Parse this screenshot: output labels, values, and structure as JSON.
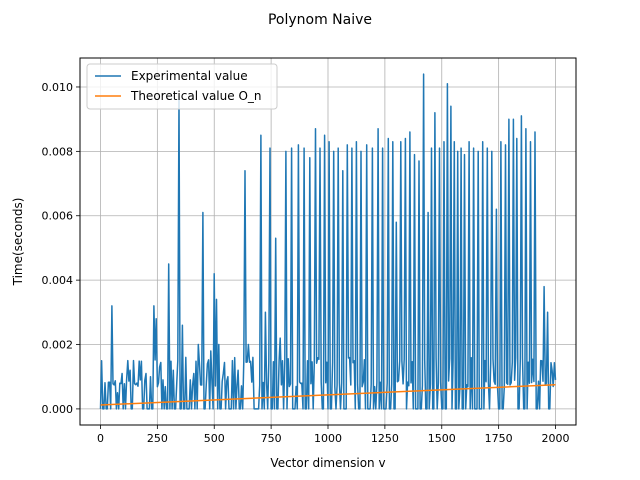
{
  "chart_data": {
    "type": "line",
    "title": "Polynom Naive",
    "xlabel": "Vector dimension v",
    "ylabel": "Time(seconds)",
    "xlim": [
      -90,
      2090
    ],
    "ylim": [
      -0.0005,
      0.0109
    ],
    "xticks": [
      0,
      250,
      500,
      750,
      1000,
      1250,
      1500,
      1750,
      2000
    ],
    "xtick_labels": [
      "0",
      "250",
      "500",
      "750",
      "1000",
      "1250",
      "1500",
      "1750",
      "2000"
    ],
    "yticks": [
      0.0,
      0.002,
      0.004,
      0.006,
      0.008,
      0.01
    ],
    "ytick_labels": [
      "0.000",
      "0.002",
      "0.004",
      "0.006",
      "0.008",
      "0.010"
    ],
    "grid": true,
    "legend_position": "upper-left",
    "baseline": 0.0003,
    "series": [
      {
        "name": "Experimental value",
        "color": "#1f77b4",
        "spikes": [
          [
            50,
            0.0032
          ],
          [
            75,
            0.0005
          ],
          [
            95,
            0.0011
          ],
          [
            115,
            0.0009
          ],
          [
            130,
            0.0012
          ],
          [
            160,
            0.0008
          ],
          [
            175,
            0.0009
          ],
          [
            200,
            0.0011
          ],
          [
            220,
            0.001
          ],
          [
            235,
            0.0032
          ],
          [
            245,
            0.0028
          ],
          [
            260,
            0.0013
          ],
          [
            275,
            0.0009
          ],
          [
            300,
            0.0045
          ],
          [
            320,
            0.0012
          ],
          [
            345,
            0.0097
          ],
          [
            360,
            0.0026
          ],
          [
            375,
            0.0016
          ],
          [
            395,
            0.0009
          ],
          [
            410,
            0.0011
          ],
          [
            430,
            0.002
          ],
          [
            450,
            0.0061
          ],
          [
            470,
            0.0014
          ],
          [
            485,
            0.0018
          ],
          [
            500,
            0.0042
          ],
          [
            510,
            0.0034
          ],
          [
            520,
            0.002
          ],
          [
            540,
            0.0011
          ],
          [
            560,
            0.001
          ],
          [
            580,
            0.0015
          ],
          [
            605,
            0.0012
          ],
          [
            635,
            0.0074
          ],
          [
            650,
            0.002
          ],
          [
            670,
            0.0016
          ],
          [
            705,
            0.0085
          ],
          [
            725,
            0.003
          ],
          [
            745,
            0.0081
          ],
          [
            770,
            0.0053
          ],
          [
            790,
            0.0022
          ],
          [
            815,
            0.008
          ],
          [
            840,
            0.0081
          ],
          [
            870,
            0.0082
          ],
          [
            895,
            0.0081
          ],
          [
            920,
            0.0078
          ],
          [
            945,
            0.0087
          ],
          [
            965,
            0.0081
          ],
          [
            985,
            0.0085
          ],
          [
            1005,
            0.0083
          ],
          [
            1025,
            0.008
          ],
          [
            1045,
            0.0081
          ],
          [
            1065,
            0.0074
          ],
          [
            1085,
            0.0082
          ],
          [
            1105,
            0.0081
          ],
          [
            1125,
            0.0083
          ],
          [
            1145,
            0.008
          ],
          [
            1170,
            0.0082
          ],
          [
            1195,
            0.0081
          ],
          [
            1220,
            0.0087
          ],
          [
            1240,
            0.0081
          ],
          [
            1265,
            0.0084
          ],
          [
            1285,
            0.0083
          ],
          [
            1300,
            0.0058
          ],
          [
            1320,
            0.0083
          ],
          [
            1340,
            0.0084
          ],
          [
            1360,
            0.0086
          ],
          [
            1380,
            0.0079
          ],
          [
            1400,
            0.0077
          ],
          [
            1420,
            0.0104
          ],
          [
            1440,
            0.0061
          ],
          [
            1455,
            0.0081
          ],
          [
            1470,
            0.0092
          ],
          [
            1490,
            0.0081
          ],
          [
            1510,
            0.0083
          ],
          [
            1525,
            0.0101
          ],
          [
            1540,
            0.0094
          ],
          [
            1555,
            0.0083
          ],
          [
            1570,
            0.008
          ],
          [
            1585,
            0.0081
          ],
          [
            1600,
            0.0079
          ],
          [
            1620,
            0.0083
          ],
          [
            1640,
            0.0081
          ],
          [
            1660,
            0.008
          ],
          [
            1680,
            0.0083
          ],
          [
            1700,
            0.0081
          ],
          [
            1720,
            0.008
          ],
          [
            1740,
            0.0062
          ],
          [
            1760,
            0.0083
          ],
          [
            1780,
            0.0082
          ],
          [
            1795,
            0.009
          ],
          [
            1815,
            0.009
          ],
          [
            1830,
            0.0084
          ],
          [
            1850,
            0.0091
          ],
          [
            1870,
            0.0087
          ],
          [
            1890,
            0.0083
          ],
          [
            1910,
            0.0086
          ],
          [
            1935,
            0.0015
          ],
          [
            1950,
            0.0038
          ],
          [
            1965,
            0.003
          ],
          [
            1985,
            0.0012
          ],
          [
            2000,
            0.0009
          ]
        ]
      },
      {
        "name": "Theoretical value O_n",
        "color": "#ff7f0e",
        "x": [
          0,
          2000
        ],
        "y": [
          0.00012,
          0.00075
        ]
      }
    ]
  }
}
